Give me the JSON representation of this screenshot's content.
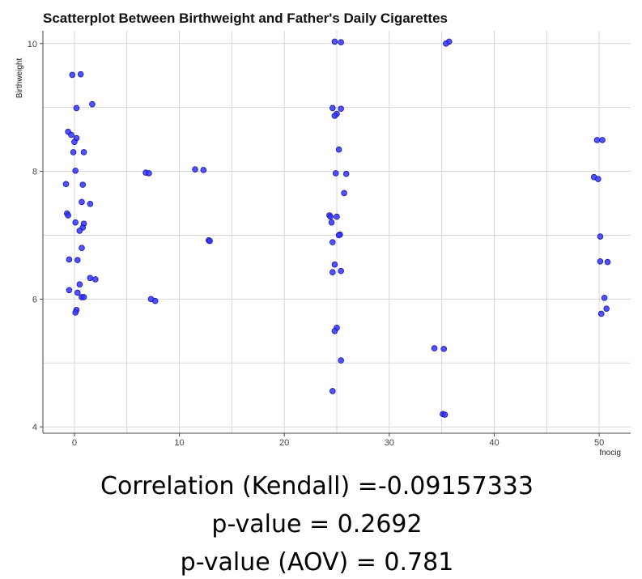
{
  "chart_data": {
    "type": "scatter",
    "title": "Scatterplot Between Birthweight and Father's Daily Cigarettes",
    "xlabel": "fnocig",
    "ylabel": "Birthweight",
    "xlim": [
      -3,
      53
    ],
    "ylim": [
      3.9,
      10.2
    ],
    "x_ticks": [
      0,
      10,
      20,
      30,
      40,
      50
    ],
    "y_ticks": [
      4,
      6,
      8,
      10
    ],
    "grid": true,
    "point_color": "#3333ff",
    "point_edge_color": "#1a1aa0",
    "points": [
      {
        "x": -0.2,
        "y": 9.51
      },
      {
        "x": 0.6,
        "y": 9.52
      },
      {
        "x": 1.7,
        "y": 9.05
      },
      {
        "x": 0.2,
        "y": 8.99
      },
      {
        "x": -0.6,
        "y": 8.62
      },
      {
        "x": -0.3,
        "y": 8.57
      },
      {
        "x": 0.2,
        "y": 8.52
      },
      {
        "x": 0.0,
        "y": 8.46
      },
      {
        "x": -0.1,
        "y": 8.3
      },
      {
        "x": 0.9,
        "y": 8.3
      },
      {
        "x": 0.1,
        "y": 8.01
      },
      {
        "x": -0.8,
        "y": 7.8
      },
      {
        "x": 0.8,
        "y": 7.79
      },
      {
        "x": 0.7,
        "y": 7.52
      },
      {
        "x": 1.5,
        "y": 7.49
      },
      {
        "x": -0.7,
        "y": 7.34
      },
      {
        "x": -0.6,
        "y": 7.31
      },
      {
        "x": 0.1,
        "y": 7.2
      },
      {
        "x": 0.9,
        "y": 7.18
      },
      {
        "x": 0.8,
        "y": 7.12
      },
      {
        "x": 0.5,
        "y": 7.07
      },
      {
        "x": 0.7,
        "y": 6.8
      },
      {
        "x": -0.5,
        "y": 6.62
      },
      {
        "x": 0.3,
        "y": 6.61
      },
      {
        "x": 1.5,
        "y": 6.33
      },
      {
        "x": 2.0,
        "y": 6.31
      },
      {
        "x": 0.5,
        "y": 6.23
      },
      {
        "x": -0.5,
        "y": 6.14
      },
      {
        "x": 0.3,
        "y": 6.1
      },
      {
        "x": 0.7,
        "y": 6.03
      },
      {
        "x": 0.9,
        "y": 6.03
      },
      {
        "x": 0.2,
        "y": 5.83
      },
      {
        "x": 0.1,
        "y": 5.79
      },
      {
        "x": 6.8,
        "y": 7.98
      },
      {
        "x": 7.1,
        "y": 7.97
      },
      {
        "x": 7.3,
        "y": 6.0
      },
      {
        "x": 7.7,
        "y": 5.97
      },
      {
        "x": 11.5,
        "y": 8.03
      },
      {
        "x": 12.3,
        "y": 8.02
      },
      {
        "x": 12.8,
        "y": 6.92
      },
      {
        "x": 12.9,
        "y": 6.91
      },
      {
        "x": 24.8,
        "y": 10.03
      },
      {
        "x": 25.4,
        "y": 10.02
      },
      {
        "x": 24.6,
        "y": 8.99
      },
      {
        "x": 25.4,
        "y": 8.98
      },
      {
        "x": 25.0,
        "y": 8.9
      },
      {
        "x": 24.8,
        "y": 8.87
      },
      {
        "x": 25.2,
        "y": 8.34
      },
      {
        "x": 24.9,
        "y": 7.97
      },
      {
        "x": 25.9,
        "y": 7.96
      },
      {
        "x": 25.7,
        "y": 7.66
      },
      {
        "x": 24.3,
        "y": 7.31
      },
      {
        "x": 24.4,
        "y": 7.29
      },
      {
        "x": 25.0,
        "y": 7.29
      },
      {
        "x": 24.5,
        "y": 7.2
      },
      {
        "x": 25.3,
        "y": 7.01
      },
      {
        "x": 25.2,
        "y": 7.0
      },
      {
        "x": 24.6,
        "y": 6.89
      },
      {
        "x": 24.8,
        "y": 6.54
      },
      {
        "x": 25.4,
        "y": 6.44
      },
      {
        "x": 24.6,
        "y": 6.42
      },
      {
        "x": 25.0,
        "y": 5.55
      },
      {
        "x": 24.8,
        "y": 5.5
      },
      {
        "x": 25.4,
        "y": 5.04
      },
      {
        "x": 24.6,
        "y": 4.56
      },
      {
        "x": 35.7,
        "y": 10.03
      },
      {
        "x": 35.4,
        "y": 10.0
      },
      {
        "x": 34.3,
        "y": 5.23
      },
      {
        "x": 35.2,
        "y": 5.22
      },
      {
        "x": 35.1,
        "y": 4.2
      },
      {
        "x": 35.3,
        "y": 4.19
      },
      {
        "x": 49.8,
        "y": 8.49
      },
      {
        "x": 50.3,
        "y": 8.49
      },
      {
        "x": 49.5,
        "y": 7.91
      },
      {
        "x": 49.9,
        "y": 7.88
      },
      {
        "x": 50.1,
        "y": 6.98
      },
      {
        "x": 50.1,
        "y": 6.59
      },
      {
        "x": 50.8,
        "y": 6.58
      },
      {
        "x": 50.5,
        "y": 6.02
      },
      {
        "x": 50.7,
        "y": 5.85
      },
      {
        "x": 50.2,
        "y": 5.77
      }
    ]
  },
  "stats": {
    "correlation": "Correlation (Kendall) =-0.09157333",
    "p_value": "p-value = 0.2692",
    "p_value_aov": "p-value (AOV) = 0.781"
  }
}
